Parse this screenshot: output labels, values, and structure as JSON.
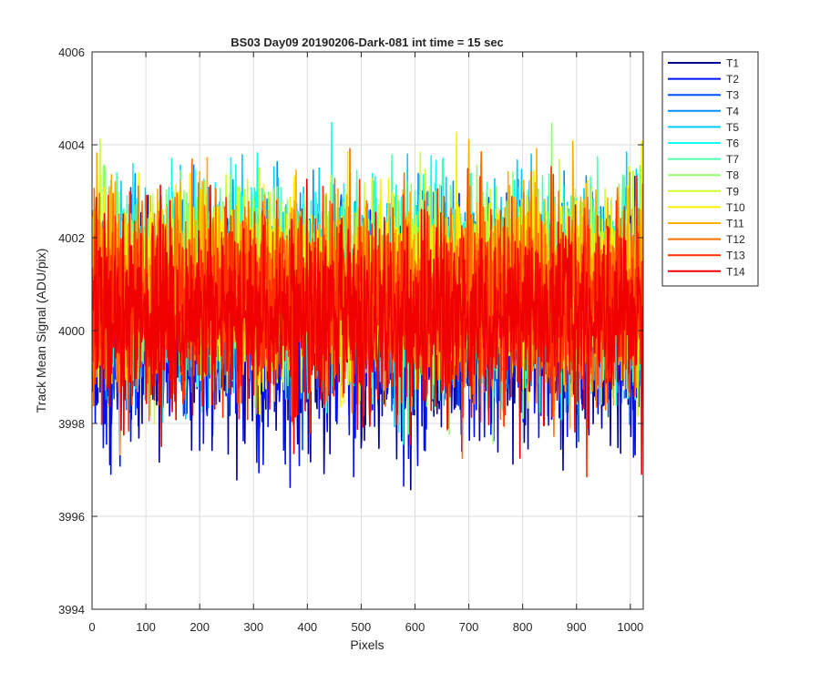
{
  "chart_data": {
    "type": "line",
    "title": "BS03 Day09 20190206-Dark-081 int time = 15 sec",
    "xlabel": "Pixels",
    "ylabel": "Track Mean Signal (ADU/pix)",
    "xlim": [
      0,
      1024
    ],
    "ylim": [
      3994,
      4006
    ],
    "xticks": [
      0,
      100,
      200,
      300,
      400,
      500,
      600,
      700,
      800,
      900,
      1000
    ],
    "yticks": [
      3994,
      3996,
      3998,
      4000,
      4002,
      4004,
      4006
    ],
    "grid": true,
    "legend_position": "outside-top-right",
    "n_points_per_series": 1024,
    "noise_note_values_are_approximate": true,
    "series": [
      {
        "name": "T1",
        "color": "#00008F",
        "mean": 3999.9,
        "spread": 1.3,
        "seed": 11
      },
      {
        "name": "T2",
        "color": "#0010FF",
        "mean": 3999.9,
        "spread": 1.3,
        "seed": 23
      },
      {
        "name": "T3",
        "color": "#0050FF",
        "mean": 4000.6,
        "spread": 1.2,
        "seed": 37
      },
      {
        "name": "T4",
        "color": "#008FFF",
        "mean": 4000.9,
        "spread": 1.2,
        "seed": 41
      },
      {
        "name": "T5",
        "color": "#00CFFF",
        "mean": 4001.0,
        "spread": 1.2,
        "seed": 53
      },
      {
        "name": "T6",
        "color": "#10FFEF",
        "mean": 4001.0,
        "spread": 1.2,
        "seed": 67
      },
      {
        "name": "T7",
        "color": "#50FFAF",
        "mean": 4001.0,
        "spread": 1.2,
        "seed": 71
      },
      {
        "name": "T8",
        "color": "#8FFF70",
        "mean": 4001.0,
        "spread": 1.2,
        "seed": 83
      },
      {
        "name": "T9",
        "color": "#CFFF30",
        "mean": 4001.0,
        "spread": 1.2,
        "seed": 97
      },
      {
        "name": "T10",
        "color": "#FFEF00",
        "mean": 4001.0,
        "spread": 1.2,
        "seed": 101
      },
      {
        "name": "T11",
        "color": "#FFAF00",
        "mean": 4000.9,
        "spread": 1.2,
        "seed": 113
      },
      {
        "name": "T12",
        "color": "#FF7000",
        "mean": 4000.8,
        "spread": 1.2,
        "seed": 127
      },
      {
        "name": "T13",
        "color": "#FF3000",
        "mean": 4000.5,
        "spread": 1.2,
        "seed": 131
      },
      {
        "name": "T14",
        "color": "#F00000",
        "mean": 4000.2,
        "spread": 1.2,
        "seed": 149
      }
    ]
  }
}
